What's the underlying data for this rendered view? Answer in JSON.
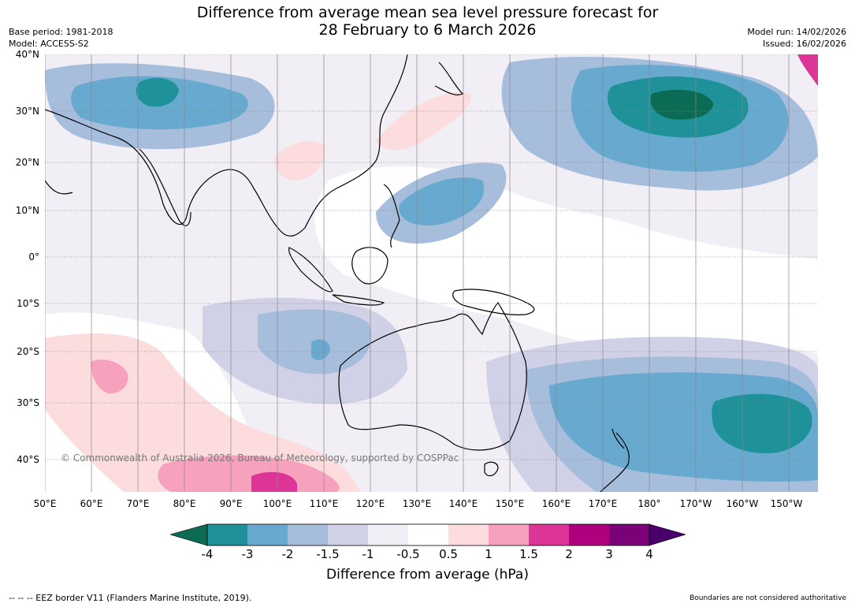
{
  "title_line1": "Difference from average mean sea level pressure forecast for",
  "title_line2": "28 February to 6 March 2026",
  "base_period": "Base period: 1981-2018",
  "model": "Model: ACCESS-S2",
  "model_run": "Model run: 14/02/2026",
  "issued": "Issued: 16/02/2026",
  "copyright": "© Commonwealth of Australia 2026, Bureau of Meteorology, supported by COSPPac",
  "lat_labels": [
    "40°N",
    "30°N",
    "20°N",
    "10°N",
    "0°",
    "10°S",
    "20°S",
    "30°S",
    "40°S"
  ],
  "lon_labels": [
    "50°E",
    "60°E",
    "70°E",
    "80°E",
    "90°E",
    "100°E",
    "110°E",
    "120°E",
    "130°E",
    "140°E",
    "150°E",
    "160°E",
    "170°E",
    "180°",
    "170°W",
    "160°W",
    "150°W"
  ],
  "colorbar": {
    "ticks": [
      "-4",
      "-3",
      "-2",
      "-1.5",
      "-1",
      "-0.5",
      "0.5",
      "1",
      "1.5",
      "2",
      "3",
      "4"
    ],
    "label": "Difference from average (hPa)",
    "colors": [
      "#0b6b55",
      "#1e9199",
      "#67a9cf",
      "#a6bddb",
      "#d0d1e6",
      "#f1eef6",
      "#ffffff",
      "#fcdcdc",
      "#f7a1bf",
      "#dd3497",
      "#ae017e",
      "#7a0177",
      "#49006a"
    ]
  },
  "footer_left": "-- -- -- EEZ border V11 (Flanders Marine Institute, 2019).",
  "footer_right": "Boundaries are not considered authoritative"
}
